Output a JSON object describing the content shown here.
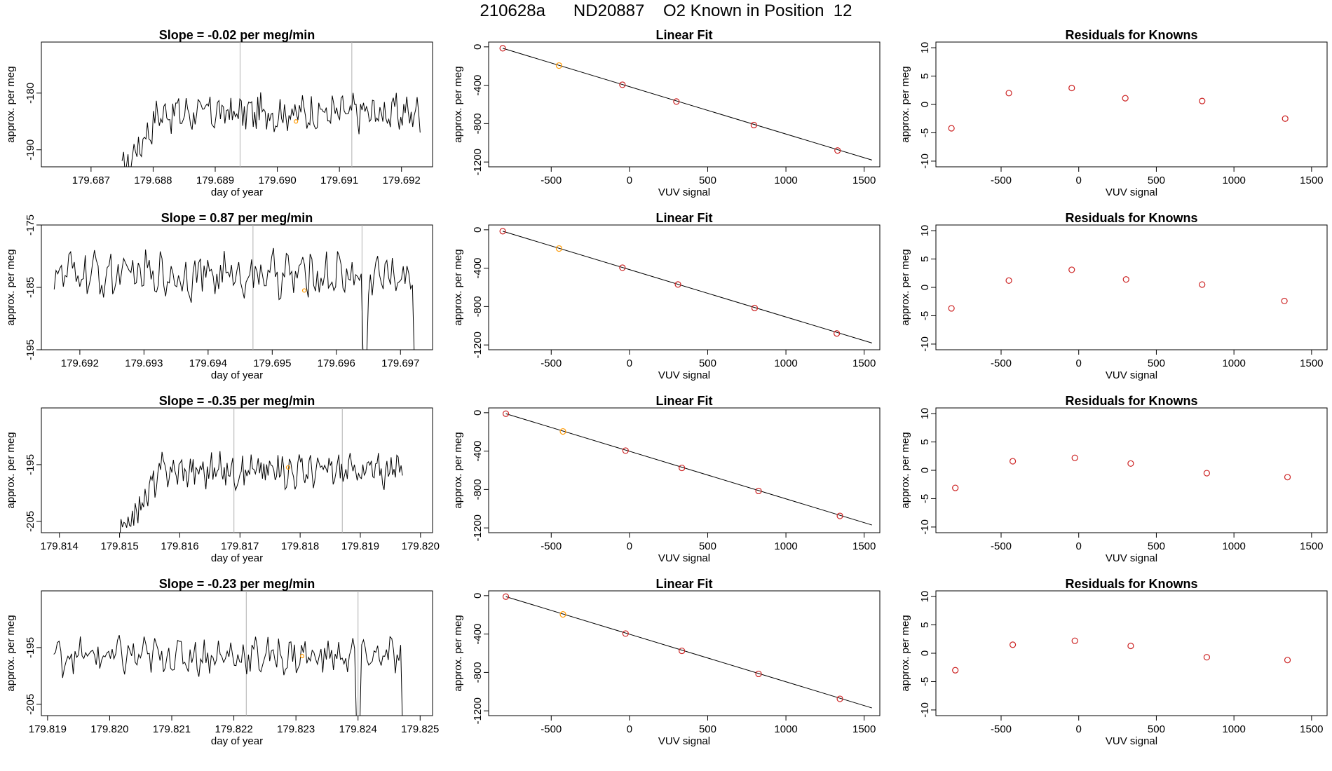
{
  "title": "210628a      ND20887    O2 Known in Position  12",
  "colors": {
    "trace": "#000000",
    "vline": "#b0b0b0",
    "known_point": "#ff9900",
    "fit_line": "#000000",
    "fit_point_red": "#cc2222",
    "residual_point": "#cc2222"
  },
  "chart_data": [
    {
      "panel": "time-series-1",
      "type": "line",
      "title": "Slope =  -0.02  per meg/min",
      "xlabel": "day of year",
      "ylabel": "approx. per meg",
      "xlim": [
        179.6862,
        179.6925
      ],
      "ylim": [
        -193,
        -171
      ],
      "xticks": [
        "179.687",
        "179.688",
        "179.689",
        "179.690",
        "179.691",
        "179.692"
      ],
      "yticks": [
        -190,
        -180
      ],
      "vlines": [
        179.6894,
        179.6912
      ],
      "series_start": 179.6875,
      "series_end": 179.6923,
      "start_value": -194,
      "plateau": -183.5,
      "rise_end": 179.6881,
      "amplitude": 2.6,
      "known_marker": {
        "x": 179.6903,
        "y": -185
      }
    },
    {
      "panel": "time-series-2",
      "type": "line",
      "title": "Slope =  0.87  per meg/min",
      "xlabel": "day of year",
      "ylabel": "approx. per meg",
      "xlim": [
        179.6914,
        179.6975
      ],
      "ylim": [
        -195,
        -175
      ],
      "xticks": [
        "179.692",
        "179.693",
        "179.694",
        "179.695",
        "179.696",
        "179.697"
      ],
      "yticks": [
        -195,
        -185,
        -175
      ],
      "vlines": [
        179.6947,
        179.6964
      ],
      "series_start": 179.6916,
      "series_end": 179.6973,
      "start_value": -182,
      "plateau": -183,
      "rise_end": 179.6916,
      "amplitude": 3.0,
      "drop_at": 179.69645,
      "drop_to": -196,
      "tail_drop_at": 179.6972,
      "known_marker": {
        "x": 179.6955,
        "y": -185.5
      }
    },
    {
      "panel": "time-series-3",
      "type": "line",
      "title": "Slope =  -0.35  per meg/min",
      "xlabel": "day of year",
      "ylabel": "approx. per meg",
      "xlim": [
        179.8137,
        179.8202
      ],
      "ylim": [
        -207,
        -185
      ],
      "xticks": [
        "179.814",
        "179.815",
        "179.816",
        "179.817",
        "179.818",
        "179.819",
        "179.820"
      ],
      "yticks": [
        -205,
        -195
      ],
      "vlines": [
        179.8169,
        179.8187
      ],
      "series_start": 179.815,
      "series_end": 179.8197,
      "start_value": -208,
      "plateau": -196,
      "rise_end": 179.8157,
      "amplitude": 2.4,
      "known_marker": {
        "x": 179.8178,
        "y": -195.5
      }
    },
    {
      "panel": "time-series-4",
      "type": "line",
      "title": "Slope =  -0.23  per meg/min",
      "xlabel": "day of year",
      "ylabel": "approx. per meg",
      "xlim": [
        179.8189,
        179.8252
      ],
      "ylim": [
        -207,
        -185
      ],
      "xticks": [
        "179.819",
        "179.820",
        "179.821",
        "179.822",
        "179.823",
        "179.824",
        "179.825"
      ],
      "yticks": [
        -205,
        -195
      ],
      "vlines": [
        179.8222,
        179.824
      ],
      "series_start": 179.8191,
      "series_end": 179.8248,
      "start_value": -198,
      "plateau": -196.5,
      "rise_end": 179.8191,
      "amplitude": 2.6,
      "drop_at": 179.824,
      "drop_to": -208,
      "tail_drop_at": 179.8247,
      "known_marker": {
        "x": 179.8231,
        "y": -196.5
      }
    },
    {
      "panel": "linear-fit-1",
      "type": "scatter",
      "title": "Linear Fit",
      "xlabel": "VUV signal",
      "ylabel": "approx. per meg",
      "xlim": [
        -900,
        1600
      ],
      "ylim": [
        -1250,
        50
      ],
      "xticks": [
        -500,
        0,
        500,
        1000,
        1500
      ],
      "yticks": [
        0,
        -400,
        -800,
        -1200
      ],
      "fit_line": [
        [
          -810,
          -15
        ],
        [
          1550,
          -1180
        ]
      ],
      "points": [
        [
          -810,
          -15
        ],
        [
          -450,
          -195
        ],
        [
          -45,
          -395
        ],
        [
          300,
          -570
        ],
        [
          795,
          -815
        ],
        [
          1330,
          -1080
        ]
      ],
      "orange_index": 1
    },
    {
      "panel": "linear-fit-2",
      "type": "scatter",
      "title": "Linear Fit",
      "xlabel": "VUV signal",
      "ylabel": "approx. per meg",
      "xlim": [
        -900,
        1600
      ],
      "ylim": [
        -1250,
        50
      ],
      "xticks": [
        -500,
        0,
        500,
        1000,
        1500
      ],
      "yticks": [
        0,
        -400,
        -800,
        -1200
      ],
      "fit_line": [
        [
          -810,
          -15
        ],
        [
          1550,
          -1180
        ]
      ],
      "points": [
        [
          -810,
          -15
        ],
        [
          -450,
          -195
        ],
        [
          -45,
          -395
        ],
        [
          310,
          -570
        ],
        [
          800,
          -815
        ],
        [
          1325,
          -1080
        ]
      ],
      "orange_index": 1
    },
    {
      "panel": "linear-fit-3",
      "type": "scatter",
      "title": "Linear Fit",
      "xlabel": "VUV signal",
      "ylabel": "approx. per meg",
      "xlim": [
        -900,
        1600
      ],
      "ylim": [
        -1250,
        50
      ],
      "xticks": [
        -500,
        0,
        500,
        1000,
        1500
      ],
      "yticks": [
        0,
        -400,
        -800,
        -1200
      ],
      "fit_line": [
        [
          -790,
          -10
        ],
        [
          1550,
          -1170
        ]
      ],
      "points": [
        [
          -790,
          -10
        ],
        [
          -425,
          -195
        ],
        [
          -25,
          -395
        ],
        [
          335,
          -575
        ],
        [
          825,
          -815
        ],
        [
          1345,
          -1075
        ]
      ],
      "orange_index": 1
    },
    {
      "panel": "linear-fit-4",
      "type": "scatter",
      "title": "Linear Fit",
      "xlabel": "VUV signal",
      "ylabel": "approx. per meg",
      "xlim": [
        -900,
        1600
      ],
      "ylim": [
        -1250,
        50
      ],
      "xticks": [
        -500,
        0,
        500,
        1000,
        1500
      ],
      "yticks": [
        0,
        -400,
        -800,
        -1200
      ],
      "fit_line": [
        [
          -790,
          -10
        ],
        [
          1550,
          -1170
        ]
      ],
      "points": [
        [
          -790,
          -10
        ],
        [
          -425,
          -195
        ],
        [
          -25,
          -395
        ],
        [
          335,
          -575
        ],
        [
          825,
          -815
        ],
        [
          1345,
          -1075
        ]
      ],
      "orange_index": 1
    },
    {
      "panel": "residuals-1",
      "type": "scatter",
      "title": "Residuals for Knowns",
      "xlabel": "VUV signal",
      "ylabel": "approx. per meg",
      "xlim": [
        -920,
        1600
      ],
      "ylim": [
        -11,
        11
      ],
      "xticks": [
        -500,
        0,
        500,
        1000,
        1500
      ],
      "yticks": [
        10,
        5,
        0,
        -5,
        -10
      ],
      "points": [
        [
          -820,
          -4.2
        ],
        [
          -450,
          2.0
        ],
        [
          -45,
          2.9
        ],
        [
          300,
          1.1
        ],
        [
          795,
          0.6
        ],
        [
          1330,
          -2.5
        ]
      ]
    },
    {
      "panel": "residuals-2",
      "type": "scatter",
      "title": "Residuals for Knowns",
      "xlabel": "VUV signal",
      "ylabel": "approx. per meg",
      "xlim": [
        -920,
        1600
      ],
      "ylim": [
        -11,
        11
      ],
      "xticks": [
        -500,
        0,
        500,
        1000,
        1500
      ],
      "yticks": [
        10,
        5,
        0,
        -5,
        -10
      ],
      "points": [
        [
          -820,
          -3.7
        ],
        [
          -450,
          1.2
        ],
        [
          -45,
          3.1
        ],
        [
          305,
          1.4
        ],
        [
          795,
          0.5
        ],
        [
          1325,
          -2.4
        ]
      ]
    },
    {
      "panel": "residuals-3",
      "type": "scatter",
      "title": "Residuals for Knowns",
      "xlabel": "VUV signal",
      "ylabel": "approx. per meg",
      "xlim": [
        -920,
        1600
      ],
      "ylim": [
        -11,
        11
      ],
      "xticks": [
        -500,
        0,
        500,
        1000,
        1500
      ],
      "yticks": [
        10,
        5,
        0,
        -5,
        -10
      ],
      "points": [
        [
          -795,
          -3.1
        ],
        [
          -425,
          1.6
        ],
        [
          -25,
          2.2
        ],
        [
          335,
          1.2
        ],
        [
          825,
          -0.5
        ],
        [
          1345,
          -1.2
        ]
      ]
    },
    {
      "panel": "residuals-4",
      "type": "scatter",
      "title": "Residuals for Knowns",
      "xlabel": "VUV signal",
      "ylabel": "approx. per meg",
      "xlim": [
        -920,
        1600
      ],
      "ylim": [
        -11,
        11
      ],
      "xticks": [
        -500,
        0,
        500,
        1000,
        1500
      ],
      "yticks": [
        10,
        5,
        0,
        -5,
        -10
      ],
      "points": [
        [
          -795,
          -3.0
        ],
        [
          -425,
          1.5
        ],
        [
          -25,
          2.2
        ],
        [
          335,
          1.3
        ],
        [
          825,
          -0.7
        ],
        [
          1345,
          -1.2
        ]
      ]
    }
  ]
}
